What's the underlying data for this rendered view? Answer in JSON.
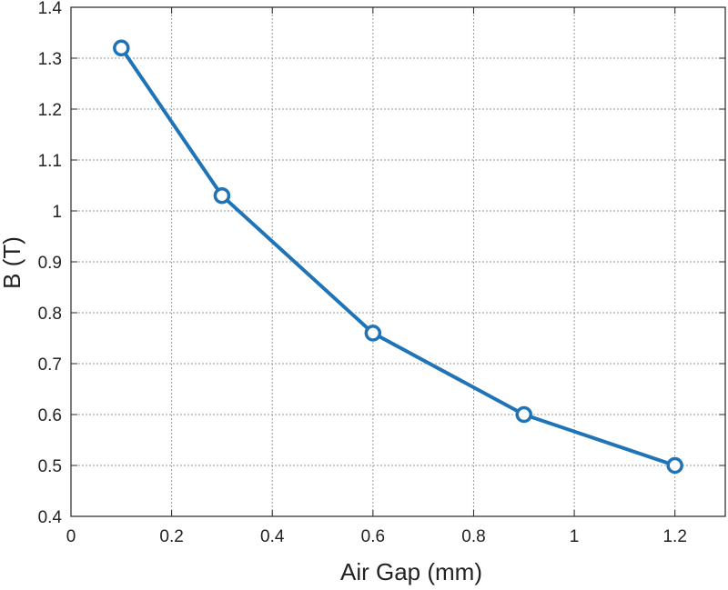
{
  "chart_data": {
    "type": "line",
    "title": "",
    "xlabel": "Air Gap (mm)",
    "ylabel": "B (T)",
    "xlim": [
      0,
      1.3
    ],
    "ylim": [
      0.4,
      1.4
    ],
    "xticks": [
      0,
      0.2,
      0.4,
      0.6,
      0.8,
      1,
      1.2
    ],
    "xtick_labels": [
      "0",
      "0.2",
      "0.4",
      "0.6",
      "0.8",
      "1",
      "1.2"
    ],
    "yticks": [
      0.4,
      0.5,
      0.6,
      0.7,
      0.8,
      0.9,
      1,
      1.1,
      1.2,
      1.3,
      1.4
    ],
    "ytick_labels": [
      "0.4",
      "0.5",
      "0.6",
      "0.7",
      "0.8",
      "0.9",
      "1",
      "1.1",
      "1.2",
      "1.3",
      "1.4"
    ],
    "grid": true,
    "legend": "none",
    "series": [
      {
        "x": [
          0.1,
          0.3,
          0.6,
          0.9,
          1.2
        ],
        "y": [
          1.32,
          1.03,
          0.76,
          0.6,
          0.5
        ],
        "color": "#1f74b8",
        "marker": "circle-open"
      }
    ]
  }
}
